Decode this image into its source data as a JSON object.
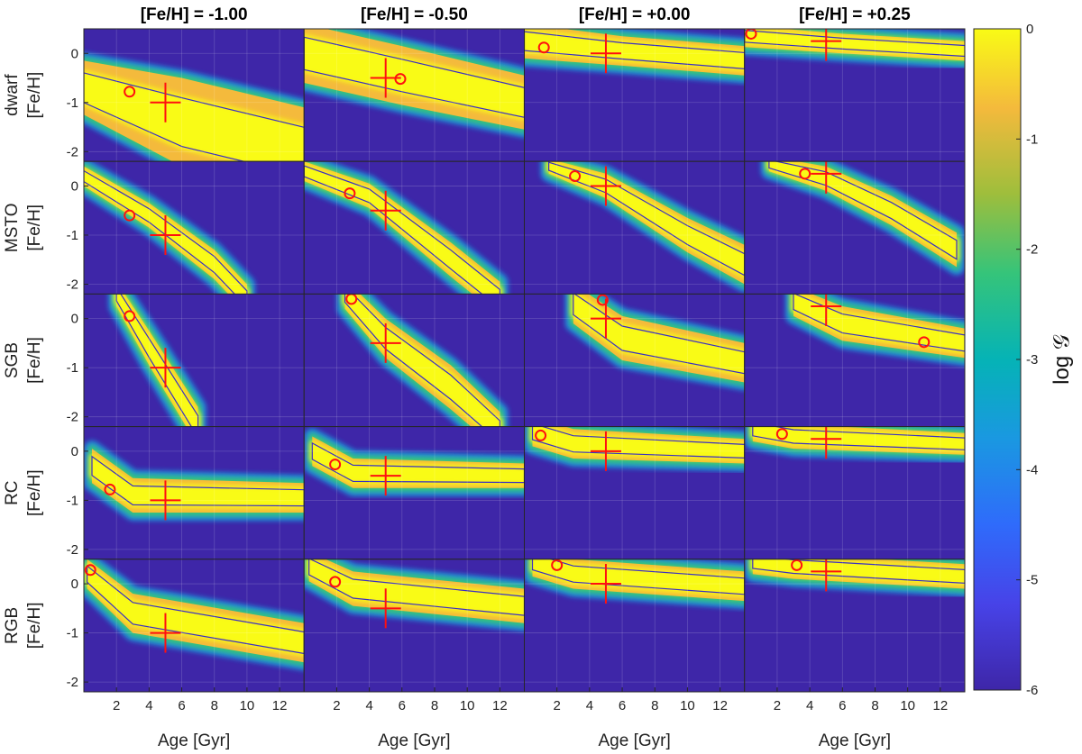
{
  "chart_data": {
    "type": "heatmap",
    "column_titles": [
      "[Fe/H] = -1.00",
      "[Fe/H] = -0.50",
      "[Fe/H] = +0.00",
      "[Fe/H] = +0.25"
    ],
    "row_labels": [
      "dwarf",
      "MSTO",
      "SGB",
      "RC",
      "RGB"
    ],
    "ylabel": "[Fe/H]",
    "xlabel": "Age [Gyr]",
    "xlim": [
      0,
      13.5
    ],
    "ylim": [
      -2.2,
      0.5
    ],
    "x_ticks": [
      "2",
      "4",
      "6",
      "8",
      "10",
      "12"
    ],
    "x_tick_values": [
      2,
      4,
      6,
      8,
      10,
      12
    ],
    "y_ticks": [
      "0",
      "-1",
      "-2"
    ],
    "y_tick_values": [
      0,
      -1,
      -2
    ],
    "grid": true,
    "colorbar": {
      "label": "log 𝒢",
      "range": [
        -6,
        0
      ],
      "ticks": [
        "0",
        "-1",
        "-2",
        "-3",
        "-4",
        "-5",
        "-6"
      ],
      "tick_values": [
        0,
        -1,
        -2,
        -3,
        -4,
        -5,
        -6
      ],
      "colormap": "parula"
    },
    "true_value_marker": "red plus",
    "best_fit_marker": "red circle",
    "panels": [
      {
        "row": "dwarf",
        "col": "[Fe/H] = -1.00",
        "true_age": 5,
        "true_feh": -1.0,
        "best_age": 2.8,
        "best_feh": -0.78
      },
      {
        "row": "dwarf",
        "col": "[Fe/H] = -0.50",
        "true_age": 5,
        "true_feh": -0.5,
        "best_age": 5.9,
        "best_feh": -0.52
      },
      {
        "row": "dwarf",
        "col": "[Fe/H] = +0.00",
        "true_age": 5,
        "true_feh": 0.0,
        "best_age": 1.2,
        "best_feh": 0.12
      },
      {
        "row": "dwarf",
        "col": "[Fe/H] = +0.25",
        "true_age": 5,
        "true_feh": 0.25,
        "best_age": 0.4,
        "best_feh": 0.4
      },
      {
        "row": "MSTO",
        "col": "[Fe/H] = -1.00",
        "true_age": 5,
        "true_feh": -1.0,
        "best_age": 2.8,
        "best_feh": -0.6
      },
      {
        "row": "MSTO",
        "col": "[Fe/H] = -0.50",
        "true_age": 5,
        "true_feh": -0.5,
        "best_age": 2.8,
        "best_feh": -0.15
      },
      {
        "row": "MSTO",
        "col": "[Fe/H] = +0.00",
        "true_age": 5,
        "true_feh": 0.0,
        "best_age": 3.1,
        "best_feh": 0.2
      },
      {
        "row": "MSTO",
        "col": "[Fe/H] = +0.25",
        "true_age": 5,
        "true_feh": 0.25,
        "best_age": 3.7,
        "best_feh": 0.25
      },
      {
        "row": "SGB",
        "col": "[Fe/H] = -1.00",
        "true_age": 5,
        "true_feh": -1.0,
        "best_age": 2.8,
        "best_feh": 0.05
      },
      {
        "row": "SGB",
        "col": "[Fe/H] = -0.50",
        "true_age": 5,
        "true_feh": -0.5,
        "best_age": 2.9,
        "best_feh": 0.4
      },
      {
        "row": "SGB",
        "col": "[Fe/H] = +0.00",
        "true_age": 5,
        "true_feh": 0.0,
        "best_age": 4.8,
        "best_feh": 0.38
      },
      {
        "row": "SGB",
        "col": "[Fe/H] = +0.25",
        "true_age": 5,
        "true_feh": 0.25,
        "best_age": 11.0,
        "best_feh": -0.48
      },
      {
        "row": "RC",
        "col": "[Fe/H] = -1.00",
        "true_age": 5,
        "true_feh": -1.0,
        "best_age": 1.6,
        "best_feh": -0.78
      },
      {
        "row": "RC",
        "col": "[Fe/H] = -0.50",
        "true_age": 5,
        "true_feh": -0.5,
        "best_age": 1.9,
        "best_feh": -0.27
      },
      {
        "row": "RC",
        "col": "[Fe/H] = +0.00",
        "true_age": 5,
        "true_feh": 0.0,
        "best_age": 1.0,
        "best_feh": 0.32
      },
      {
        "row": "RC",
        "col": "[Fe/H] = +0.25",
        "true_age": 5,
        "true_feh": 0.25,
        "best_age": 2.3,
        "best_feh": 0.35
      },
      {
        "row": "RGB",
        "col": "[Fe/H] = -1.00",
        "true_age": 5,
        "true_feh": -1.0,
        "best_age": 0.4,
        "best_feh": 0.28
      },
      {
        "row": "RGB",
        "col": "[Fe/H] = -0.50",
        "true_age": 5,
        "true_feh": -0.5,
        "best_age": 1.9,
        "best_feh": 0.04
      },
      {
        "row": "RGB",
        "col": "[Fe/H] = +0.00",
        "true_age": 5,
        "true_feh": 0.0,
        "best_age": 2.0,
        "best_feh": 0.38
      },
      {
        "row": "RGB",
        "col": "[Fe/H] = +0.25",
        "true_age": 5,
        "true_feh": 0.25,
        "best_age": 3.2,
        "best_feh": 0.38
      }
    ]
  },
  "colors": {
    "background_low": "#3e26a8",
    "band_high": "#f9fb15",
    "contour": "#3a2fc2",
    "marker": "#ff1010",
    "axis": "#262626"
  }
}
